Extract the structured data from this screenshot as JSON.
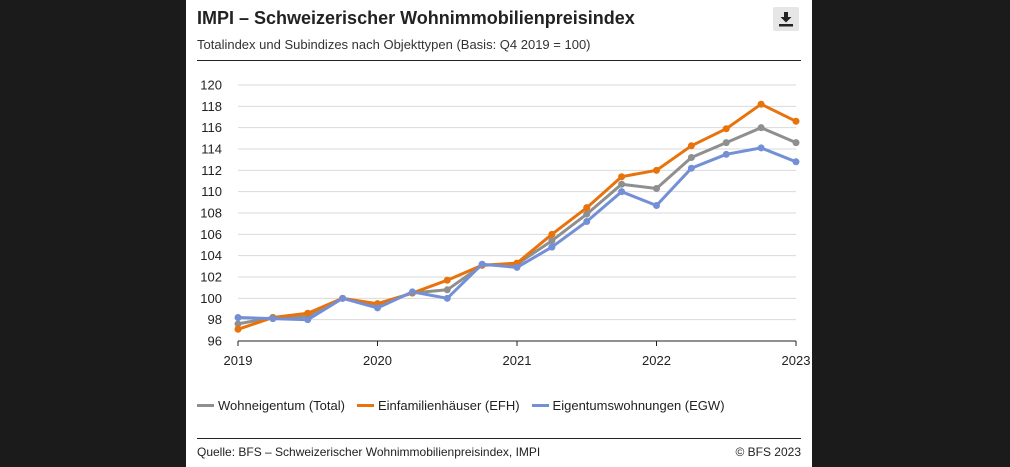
{
  "header": {
    "title": "IMPI – Schweizerischer Wohnimmobilienpreisindex",
    "subtitle": "Totalindex und Subindizes nach Objekttypen (Basis: Q4 2019 = 100)",
    "download_icon": "download-icon"
  },
  "chart_data": {
    "type": "line",
    "ylim": [
      96,
      120
    ],
    "yticks": [
      "96",
      "98",
      "100",
      "102",
      "104",
      "106",
      "108",
      "110",
      "112",
      "114",
      "116",
      "118",
      "120"
    ],
    "xticks": [
      {
        "label": "2019",
        "x": 2019.0
      },
      {
        "label": "2020",
        "x": 2020.0
      },
      {
        "label": "2021",
        "x": 2021.0
      },
      {
        "label": "2022",
        "x": 2022.0
      },
      {
        "label": "2023",
        "x": 2023.0
      }
    ],
    "x": [
      2019.0,
      2019.25,
      2019.5,
      2019.75,
      2020.0,
      2020.25,
      2020.5,
      2020.75,
      2021.0,
      2021.25,
      2021.5,
      2021.75,
      2022.0,
      2022.25,
      2022.5,
      2022.75,
      2023.0
    ],
    "grid": true,
    "series": [
      {
        "name": "Wohneigentum (Total)",
        "color": "#8f8f8f",
        "values": [
          97.6,
          98.2,
          98.3,
          100.0,
          99.4,
          100.5,
          100.8,
          103.1,
          103.2,
          105.4,
          107.9,
          110.7,
          110.3,
          113.2,
          114.6,
          116.0,
          114.6
        ]
      },
      {
        "name": "Einfamilienhäuser (EFH)",
        "color": "#e8720c",
        "values": [
          97.1,
          98.2,
          98.6,
          100.0,
          99.5,
          100.5,
          101.7,
          103.1,
          103.3,
          106.0,
          108.5,
          111.4,
          112.0,
          114.3,
          115.9,
          118.2,
          116.6
        ]
      },
      {
        "name": "Eigentumswohnungen (EGW)",
        "color": "#7390d6",
        "values": [
          98.2,
          98.1,
          98.0,
          100.0,
          99.1,
          100.6,
          100.0,
          103.2,
          102.9,
          104.8,
          107.2,
          110.0,
          108.7,
          112.2,
          113.5,
          114.1,
          112.8
        ]
      }
    ]
  },
  "footer": {
    "source": "Quelle: BFS – Schweizerischer Wohnimmobilienpreisindex, IMPI",
    "copyright": "© BFS 2023"
  }
}
